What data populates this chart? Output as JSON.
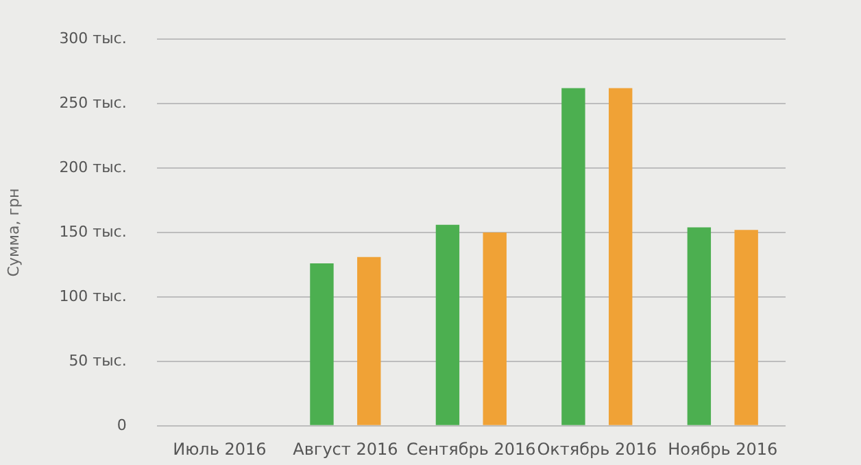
{
  "chart_data": {
    "type": "bar",
    "ylabel": "Сумма, грн",
    "categories": [
      "Июль 2016",
      "Август 2016",
      "Сентябрь 2016",
      "Октябрь 2016",
      "Ноябрь 2016"
    ],
    "series": [
      {
        "color": "#4caf50",
        "values": [
          0,
          126,
          156,
          262,
          154
        ]
      },
      {
        "color": "#f0a236",
        "values": [
          0,
          131,
          150,
          262,
          152
        ]
      }
    ],
    "ylim": [
      0,
      300
    ],
    "yticks": [
      {
        "value": 0,
        "label": "0"
      },
      {
        "value": 50,
        "label": "50 тыс."
      },
      {
        "value": 100,
        "label": "100 тыс."
      },
      {
        "value": 150,
        "label": "150 тыс."
      },
      {
        "value": 200,
        "label": "200 тыс."
      },
      {
        "value": 250,
        "label": "250 тыс."
      },
      {
        "value": 300,
        "label": "300 тыс."
      }
    ],
    "grid": "y"
  }
}
